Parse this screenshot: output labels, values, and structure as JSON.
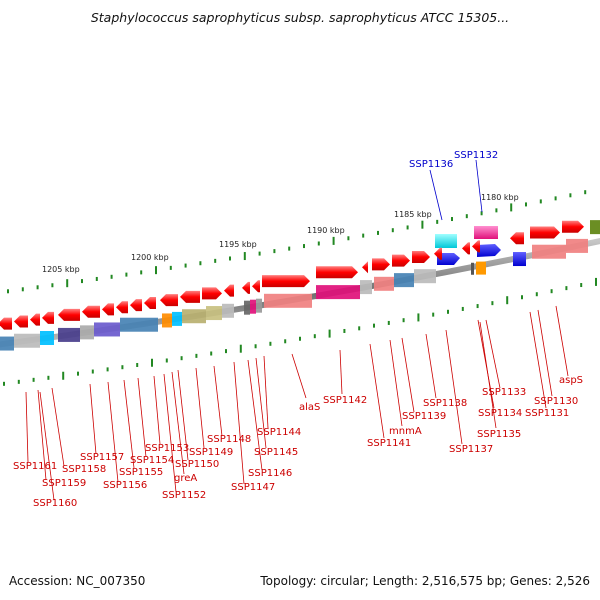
{
  "title": "Staphylococcus saprophyticus subsp. saprophyticus ATCC 15305...",
  "footer": {
    "accession": "Accession: NC_007350",
    "summary": "Topology: circular; Length: 2,516,575 bp; Genes: 2,526"
  },
  "colors": {
    "backbone": "#7a7a7a",
    "gene": "#ff0000",
    "gene_label": "#cc0000",
    "highlight_label": "#0000cc",
    "tick": "#228822"
  },
  "kbp_labels": [
    "1205 kbp",
    "1200 kbp",
    "1195 kbp",
    "1190 kbp",
    "1185 kbp",
    "1180 kbp"
  ],
  "gene_labels": [
    "SSP1161",
    "SSP1160",
    "SSP1159",
    "SSP1158",
    "SSP1157",
    "SSP1156",
    "SSP1155",
    "SSP1154",
    "SSP1153",
    "SSP1152",
    "greA",
    "SSP1150",
    "SSP1149",
    "SSP1148",
    "SSP1147",
    "SSP1146",
    "SSP1145",
    "SSP1144",
    "alaS",
    "SSP1142",
    "SSP1141",
    "mnmA",
    "SSP1139",
    "SSP1138",
    "SSP1137",
    "SSP1135",
    "SSP1134",
    "SSP1133",
    "SSP1131",
    "SSP1130",
    "aspS"
  ],
  "highlight_labels": [
    "SSP1136",
    "SSP1132"
  ]
}
